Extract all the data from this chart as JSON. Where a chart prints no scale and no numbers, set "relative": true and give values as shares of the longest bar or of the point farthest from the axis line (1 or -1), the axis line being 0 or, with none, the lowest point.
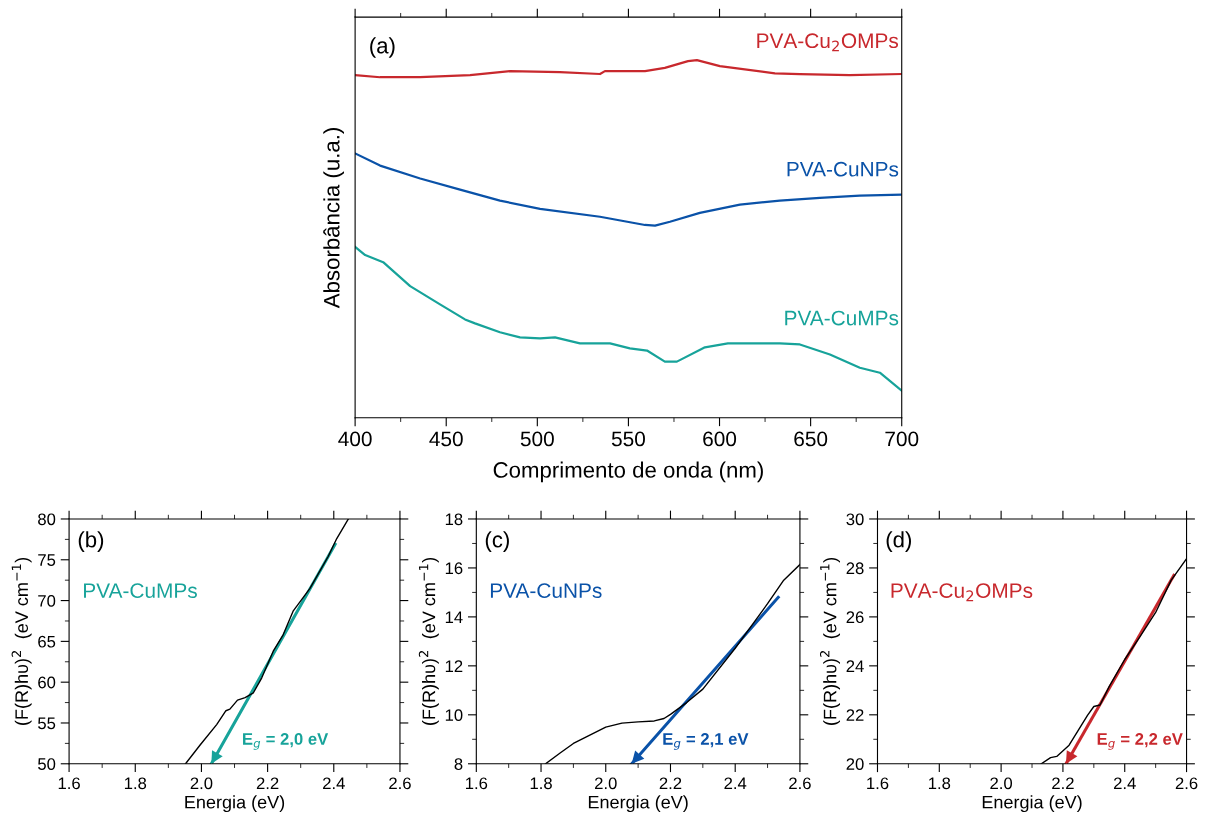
{
  "chart_data": [
    {
      "type": "line",
      "relative": true,
      "xlabel": "Comprimento de onda (nm)",
      "ylabel": "Absorbância (u.a.)",
      "xlim": [
        400,
        700
      ],
      "xticks": [
        400,
        450,
        500,
        550,
        600,
        650,
        700
      ],
      "tick_labels": "x",
      "annotations": [
        "(a)"
      ],
      "series": [
        {
          "name": "PVA-Cu$_{2}$OMPs",
          "color": "#c8282d",
          "x": [
            400,
            413.7,
            435.7,
            463.1,
            485,
            512.4,
            534.4,
            537.1,
            559.1,
            570,
            582.7,
            587.6,
            600.2,
            630.4,
            644.1,
            671.5,
            700
          ],
          "values": [
            0.958,
            0.952,
            0.952,
            0.958,
            0.969,
            0.966,
            0.961,
            0.969,
            0.969,
            0.978,
            0.997,
            1.0,
            0.983,
            0.963,
            0.961,
            0.958,
            0.961
          ]
        },
        {
          "name": "PVA-CuNPs",
          "color": "#0a52a8",
          "x": [
            400,
            413.7,
            435.7,
            457.6,
            479.5,
            501.5,
            534.4,
            559.1,
            564.6,
            572.8,
            589.2,
            611.2,
            633.1,
            655.1,
            677,
            700
          ],
          "values": [
            0.739,
            0.705,
            0.669,
            0.638,
            0.607,
            0.584,
            0.562,
            0.539,
            0.537,
            0.548,
            0.573,
            0.596,
            0.607,
            0.615,
            0.621,
            0.624
          ]
        },
        {
          "name": "PVA-CuMPs",
          "color": "#17a39a",
          "x": [
            400,
            405.5,
            415.4,
            430.2,
            446.6,
            460.3,
            465.8,
            479.5,
            490.5,
            501.5,
            509.7,
            523.4,
            539.9,
            550.8,
            560.2,
            570,
            576.6,
            592,
            604.6,
            633.1,
            644.1,
            660.6,
            677,
            688,
            700
          ],
          "values": [
            0.478,
            0.455,
            0.435,
            0.368,
            0.317,
            0.275,
            0.264,
            0.239,
            0.225,
            0.222,
            0.225,
            0.208,
            0.208,
            0.194,
            0.188,
            0.157,
            0.157,
            0.197,
            0.208,
            0.208,
            0.205,
            0.177,
            0.14,
            0.126,
            0.076
          ]
        }
      ]
    },
    {
      "type": "line",
      "xlabel": "Energia (eV)",
      "ylabel": "(F(R)hυ)$^{2}$  (eV cm$^{−1}$)",
      "xlim": [
        1.6,
        2.6
      ],
      "xticks": [
        {
          "value": 1.6,
          "label": "1.6"
        },
        {
          "value": 1.8,
          "label": "1.8"
        },
        {
          "value": 2.0,
          "label": "2.0"
        },
        {
          "value": 2.2,
          "label": "2.2"
        },
        {
          "value": 2.4,
          "label": "2.4"
        },
        {
          "value": 2.6,
          "label": "2.6"
        }
      ],
      "ylim": [
        50,
        80
      ],
      "yticks": [
        50,
        55,
        60,
        65,
        70,
        75,
        80
      ],
      "annotations": [
        "(b)",
        {
          "text": "E$_{g}$ = 2,0 eV",
          "x": 2.03,
          "y": 50
        }
      ],
      "series": [
        {
          "color": "#000000",
          "x": [
            1.952,
            1.996,
            2.046,
            2.074,
            2.086,
            2.109,
            2.132,
            2.157,
            2.182,
            2.217,
            2.247,
            2.277,
            2.328,
            2.383,
            2.409,
            2.444
          ],
          "values": [
            50,
            52.3,
            54.8,
            56.5,
            56.7,
            57.8,
            58.1,
            58.7,
            60.5,
            63.8,
            65.8,
            68.7,
            71.5,
            75.4,
            77.6,
            80
          ]
        },
        {
          "name": "PVA-CuMPs",
          "color": "#17a39a",
          "x": [
            2.404,
            2.03
          ],
          "values": [
            76.9,
            50
          ]
        }
      ]
    },
    {
      "type": "line",
      "xlabel": "Energia (eV)",
      "ylabel": "(F(R)hυ)$^{2}$  (eV cm$^{−1}$)",
      "xlim": [
        1.6,
        2.6
      ],
      "xticks": [
        {
          "value": 1.6,
          "label": "1.6"
        },
        {
          "value": 1.8,
          "label": "1.8"
        },
        {
          "value": 2.0,
          "label": "2.0"
        },
        {
          "value": 2.2,
          "label": "2.2"
        },
        {
          "value": 2.4,
          "label": "2.4"
        },
        {
          "value": 2.6,
          "label": "2.6"
        }
      ],
      "ylim": [
        8,
        18
      ],
      "yticks": [
        8,
        10,
        12,
        14,
        16,
        18
      ],
      "annotations": [
        "(c)",
        {
          "text": "E$_{g}$ = 2,1 eV",
          "x": 2.08,
          "y": 8
        }
      ],
      "series": [
        {
          "color": "#000000",
          "x": [
            1.814,
            1.86,
            1.9,
            2.0,
            2.05,
            2.1,
            2.15,
            2.18,
            2.2,
            2.25,
            2.3,
            2.4,
            2.5,
            2.55,
            2.6
          ],
          "values": [
            8,
            8.45,
            8.83,
            9.5,
            9.66,
            9.71,
            9.75,
            9.85,
            10.02,
            10.5,
            11.05,
            12.72,
            14.54,
            15.5,
            16.14
          ]
        },
        {
          "name": "PVA-CuNPs",
          "color": "#0a52a8",
          "x": [
            2.533,
            2.08
          ],
          "values": [
            14.8,
            8
          ]
        }
      ]
    },
    {
      "type": "line",
      "xlabel": "Energia (eV)",
      "ylabel": "(F(R)hυ)$^{2}$  (eV cm$^{−1}$)",
      "xlim": [
        1.6,
        2.6
      ],
      "xticks": [
        {
          "value": 1.6,
          "label": "1.6"
        },
        {
          "value": 1.8,
          "label": "1.8"
        },
        {
          "value": 2.0,
          "label": "2.0"
        },
        {
          "value": 2.2,
          "label": "2.2"
        },
        {
          "value": 2.4,
          "label": "2.4"
        },
        {
          "value": 2.6,
          "label": "2.6"
        }
      ],
      "ylim": [
        20,
        30
      ],
      "yticks": [
        20,
        22,
        24,
        26,
        28,
        30
      ],
      "annotations": [
        "(d)",
        {
          "text": "E$_{g}$ = 2,2 eV",
          "x": 2.21,
          "y": 20
        }
      ],
      "series": [
        {
          "color": "#000000",
          "x": [
            2.13,
            2.16,
            2.18,
            2.22,
            2.25,
            2.28,
            2.3,
            2.32,
            2.35,
            2.4,
            2.45,
            2.5,
            2.55,
            2.6
          ],
          "values": [
            20,
            20.25,
            20.3,
            20.76,
            21.37,
            21.99,
            22.34,
            22.4,
            23.16,
            24.26,
            25.2,
            26.18,
            27.49,
            28.38
          ]
        },
        {
          "name": "PVA-Cu$_{2}$OMPs",
          "color": "#c8282d",
          "x": [
            2.559,
            2.21
          ],
          "values": [
            27.7,
            20
          ]
        }
      ]
    }
  ]
}
